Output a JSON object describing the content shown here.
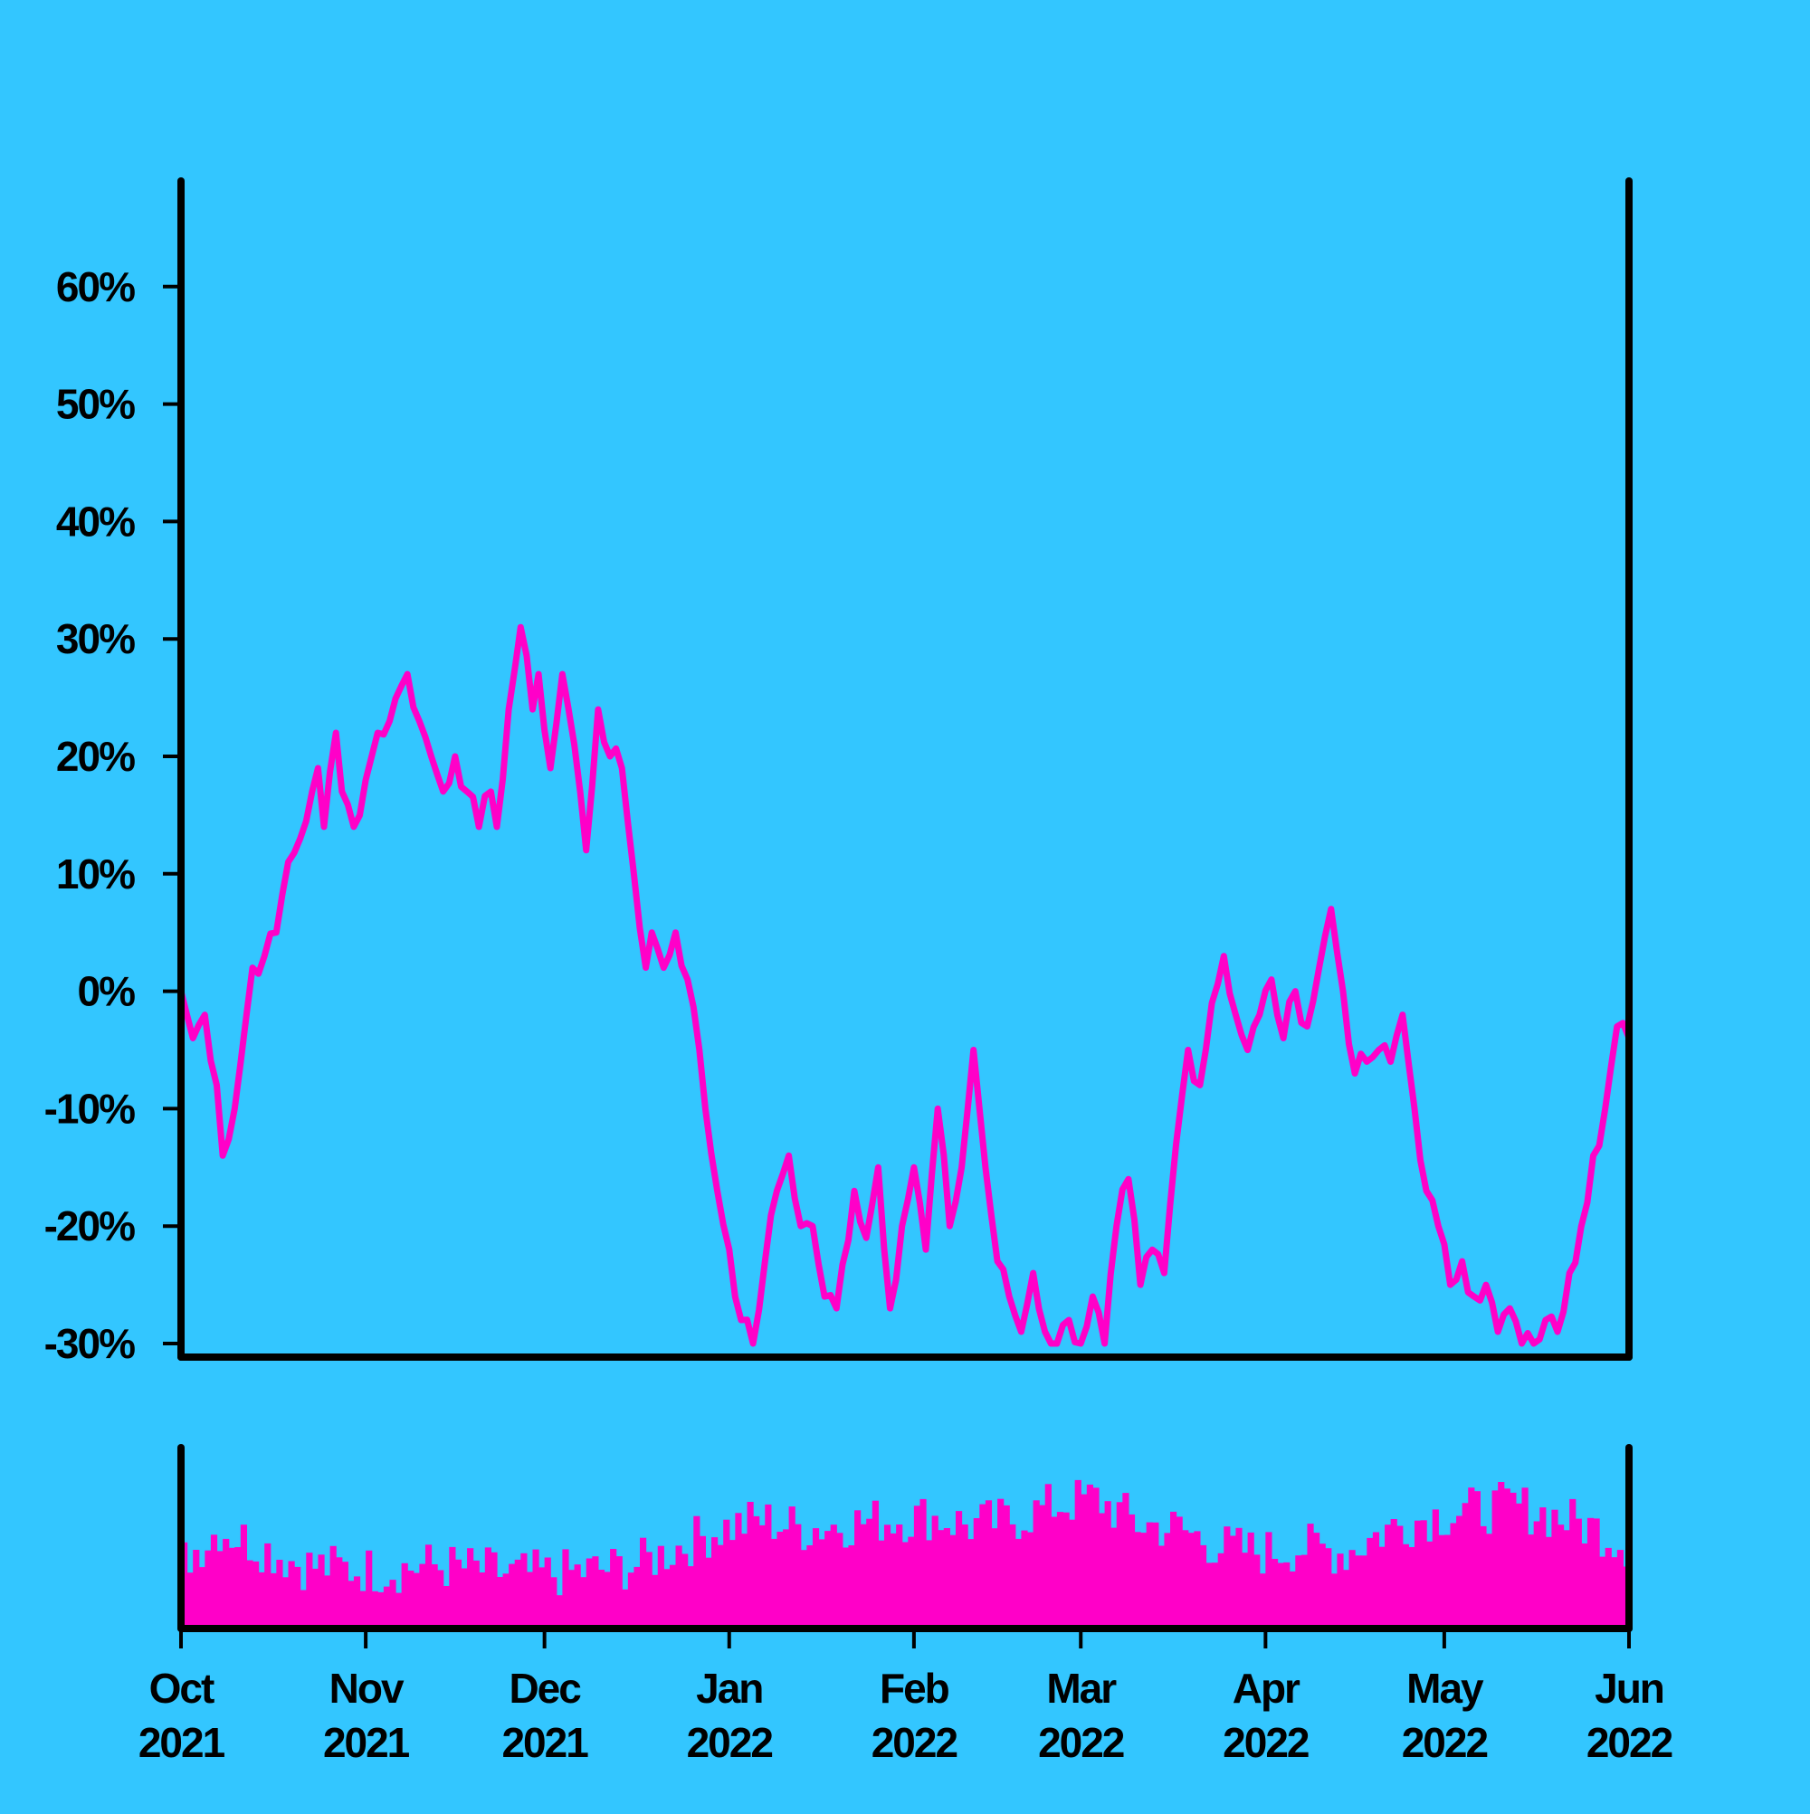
{
  "colors": {
    "background": "#33c6ff",
    "series": "#ff00c8",
    "axis": "#000000"
  },
  "chart_data": {
    "type": "line",
    "title": "",
    "xlabel": "",
    "ylabel": "",
    "x_range": [
      "2021-10-01",
      "2022-06-01"
    ],
    "y_range": [
      -30,
      70
    ],
    "y_unit": "%",
    "grid": false,
    "legend": "none",
    "yticks": [
      {
        "value": 60,
        "label": "60%"
      },
      {
        "value": 50,
        "label": "50%"
      },
      {
        "value": 40,
        "label": "40%"
      },
      {
        "value": 30,
        "label": "30%"
      },
      {
        "value": 20,
        "label": "20%"
      },
      {
        "value": 10,
        "label": "10%"
      },
      {
        "value": 0,
        "label": "0%"
      },
      {
        "value": -10,
        "label": "-10%"
      },
      {
        "value": -20,
        "label": "-20%"
      },
      {
        "value": -30,
        "label": "-30%"
      }
    ],
    "xticks": [
      {
        "date": "2021-10-01",
        "month": "Oct",
        "year": "2021"
      },
      {
        "date": "2021-11-01",
        "month": "Nov",
        "year": "2021"
      },
      {
        "date": "2021-12-01",
        "month": "Dec",
        "year": "2021"
      },
      {
        "date": "2022-01-01",
        "month": "Jan",
        "year": "2022"
      },
      {
        "date": "2022-02-01",
        "month": "Feb",
        "year": "2022"
      },
      {
        "date": "2022-03-01",
        "month": "Mar",
        "year": "2022"
      },
      {
        "date": "2022-04-01",
        "month": "Apr",
        "year": "2022"
      },
      {
        "date": "2022-05-01",
        "month": "May",
        "year": "2022"
      },
      {
        "date": "2022-06-01",
        "month": "Jun",
        "year": "2022"
      }
    ],
    "series": [
      {
        "points": [
          [
            "2021-10-01",
            0
          ],
          [
            "2021-10-03",
            -4
          ],
          [
            "2021-10-05",
            -2
          ],
          [
            "2021-10-07",
            -8
          ],
          [
            "2021-10-08",
            -14
          ],
          [
            "2021-10-10",
            -10
          ],
          [
            "2021-10-13",
            2
          ],
          [
            "2021-10-15",
            3
          ],
          [
            "2021-10-17",
            5
          ],
          [
            "2021-10-19",
            11
          ],
          [
            "2021-10-21",
            13
          ],
          [
            "2021-10-23",
            17
          ],
          [
            "2021-10-24",
            19
          ],
          [
            "2021-10-25",
            14
          ],
          [
            "2021-10-27",
            22
          ],
          [
            "2021-10-28",
            17
          ],
          [
            "2021-10-30",
            14
          ],
          [
            "2021-11-01",
            18
          ],
          [
            "2021-11-03",
            22
          ],
          [
            "2021-11-05",
            23
          ],
          [
            "2021-11-07",
            26
          ],
          [
            "2021-11-08",
            27
          ],
          [
            "2021-11-10",
            23
          ],
          [
            "2021-11-12",
            20
          ],
          [
            "2021-11-14",
            17
          ],
          [
            "2021-11-16",
            20
          ],
          [
            "2021-11-18",
            17
          ],
          [
            "2021-11-20",
            14
          ],
          [
            "2021-11-22",
            17
          ],
          [
            "2021-11-23",
            14
          ],
          [
            "2021-11-25",
            24
          ],
          [
            "2021-11-27",
            31
          ],
          [
            "2021-11-29",
            24
          ],
          [
            "2021-11-30",
            27
          ],
          [
            "2021-12-02",
            19
          ],
          [
            "2021-12-04",
            27
          ],
          [
            "2021-12-06",
            21
          ],
          [
            "2021-12-08",
            12
          ],
          [
            "2021-12-10",
            24
          ],
          [
            "2021-12-12",
            20
          ],
          [
            "2021-12-14",
            19
          ],
          [
            "2021-12-16",
            10
          ],
          [
            "2021-12-18",
            2
          ],
          [
            "2021-12-19",
            5
          ],
          [
            "2021-12-21",
            2
          ],
          [
            "2021-12-23",
            5
          ],
          [
            "2021-12-25",
            1
          ],
          [
            "2021-12-27",
            -5
          ],
          [
            "2021-12-28",
            -10
          ],
          [
            "2021-12-30",
            -17
          ],
          [
            "2022-01-01",
            -22
          ],
          [
            "2022-01-03",
            -28
          ],
          [
            "2022-01-05",
            -30
          ],
          [
            "2022-01-07",
            -23
          ],
          [
            "2022-01-09",
            -17
          ],
          [
            "2022-01-11",
            -14
          ],
          [
            "2022-01-13",
            -20
          ],
          [
            "2022-01-15",
            -20
          ],
          [
            "2022-01-17",
            -26
          ],
          [
            "2022-01-19",
            -27
          ],
          [
            "2022-01-22",
            -17
          ],
          [
            "2022-01-24",
            -21
          ],
          [
            "2022-01-26",
            -15
          ],
          [
            "2022-01-28",
            -27
          ],
          [
            "2022-01-30",
            -20
          ],
          [
            "2022-02-01",
            -15
          ],
          [
            "2022-02-03",
            -22
          ],
          [
            "2022-02-05",
            -10
          ],
          [
            "2022-02-07",
            -20
          ],
          [
            "2022-02-09",
            -15
          ],
          [
            "2022-02-11",
            -5
          ],
          [
            "2022-02-13",
            -15
          ],
          [
            "2022-02-15",
            -23
          ],
          [
            "2022-02-17",
            -26
          ],
          [
            "2022-02-19",
            -29
          ],
          [
            "2022-02-21",
            -24
          ],
          [
            "2022-02-23",
            -29
          ],
          [
            "2022-02-25",
            -30
          ],
          [
            "2022-02-27",
            -28
          ],
          [
            "2022-03-01",
            -30
          ],
          [
            "2022-03-03",
            -26
          ],
          [
            "2022-03-05",
            -30
          ],
          [
            "2022-03-07",
            -20
          ],
          [
            "2022-03-09",
            -16
          ],
          [
            "2022-03-11",
            -25
          ],
          [
            "2022-03-13",
            -22
          ],
          [
            "2022-03-15",
            -24
          ],
          [
            "2022-03-17",
            -13
          ],
          [
            "2022-03-19",
            -5
          ],
          [
            "2022-03-21",
            -8
          ],
          [
            "2022-03-23",
            -1
          ],
          [
            "2022-03-25",
            3
          ],
          [
            "2022-03-27",
            -2
          ],
          [
            "2022-03-29",
            -5
          ],
          [
            "2022-03-31",
            -2
          ],
          [
            "2022-04-02",
            1
          ],
          [
            "2022-04-04",
            -4
          ],
          [
            "2022-04-06",
            0
          ],
          [
            "2022-04-08",
            -3
          ],
          [
            "2022-04-10",
            2
          ],
          [
            "2022-04-12",
            7
          ],
          [
            "2022-04-14",
            0
          ],
          [
            "2022-04-16",
            -7
          ],
          [
            "2022-04-18",
            -6
          ],
          [
            "2022-04-20",
            -5
          ],
          [
            "2022-04-22",
            -6
          ],
          [
            "2022-04-24",
            -2
          ],
          [
            "2022-04-26",
            -10
          ],
          [
            "2022-04-28",
            -17
          ],
          [
            "2022-04-30",
            -20
          ],
          [
            "2022-05-02",
            -25
          ],
          [
            "2022-05-04",
            -23
          ],
          [
            "2022-05-06",
            -26
          ],
          [
            "2022-05-08",
            -25
          ],
          [
            "2022-05-10",
            -29
          ],
          [
            "2022-05-12",
            -27
          ],
          [
            "2022-05-14",
            -30
          ],
          [
            "2022-05-16",
            -30
          ],
          [
            "2022-05-18",
            -28
          ],
          [
            "2022-05-20",
            -29
          ],
          [
            "2022-05-22",
            -24
          ],
          [
            "2022-05-24",
            -20
          ],
          [
            "2022-05-26",
            -14
          ],
          [
            "2022-05-28",
            -10
          ],
          [
            "2022-05-30",
            -3
          ],
          [
            "2022-06-01",
            -4
          ]
        ]
      }
    ],
    "volume": {
      "type": "bar",
      "range": [
        "2021-10-01",
        "2022-06-01"
      ],
      "levels": [
        [
          "2021-10-01",
          0.38
        ],
        [
          "2021-10-07",
          0.55
        ],
        [
          "2021-10-14",
          0.45
        ],
        [
          "2021-10-21",
          0.35
        ],
        [
          "2021-10-28",
          0.33
        ],
        [
          "2021-11-04",
          0.32
        ],
        [
          "2021-11-11",
          0.35
        ],
        [
          "2021-11-18",
          0.33
        ],
        [
          "2021-11-25",
          0.3
        ],
        [
          "2021-12-02",
          0.3
        ],
        [
          "2021-12-09",
          0.32
        ],
        [
          "2021-12-16",
          0.35
        ],
        [
          "2021-12-23",
          0.45
        ],
        [
          "2021-12-30",
          0.55
        ],
        [
          "2022-01-06",
          0.6
        ],
        [
          "2022-01-13",
          0.55
        ],
        [
          "2022-01-20",
          0.58
        ],
        [
          "2022-01-27",
          0.6
        ],
        [
          "2022-02-03",
          0.62
        ],
        [
          "2022-02-10",
          0.57
        ],
        [
          "2022-02-17",
          0.6
        ],
        [
          "2022-02-24",
          0.68
        ],
        [
          "2022-03-03",
          0.72
        ],
        [
          "2022-03-10",
          0.58
        ],
        [
          "2022-03-17",
          0.55
        ],
        [
          "2022-03-24",
          0.45
        ],
        [
          "2022-03-31",
          0.42
        ],
        [
          "2022-04-07",
          0.45
        ],
        [
          "2022-04-14",
          0.42
        ],
        [
          "2022-04-21",
          0.55
        ],
        [
          "2022-04-28",
          0.62
        ],
        [
          "2022-05-05",
          0.65
        ],
        [
          "2022-05-12",
          0.68
        ],
        [
          "2022-05-19",
          0.62
        ],
        [
          "2022-05-26",
          0.55
        ],
        [
          "2022-06-01",
          0.45
        ]
      ]
    }
  }
}
